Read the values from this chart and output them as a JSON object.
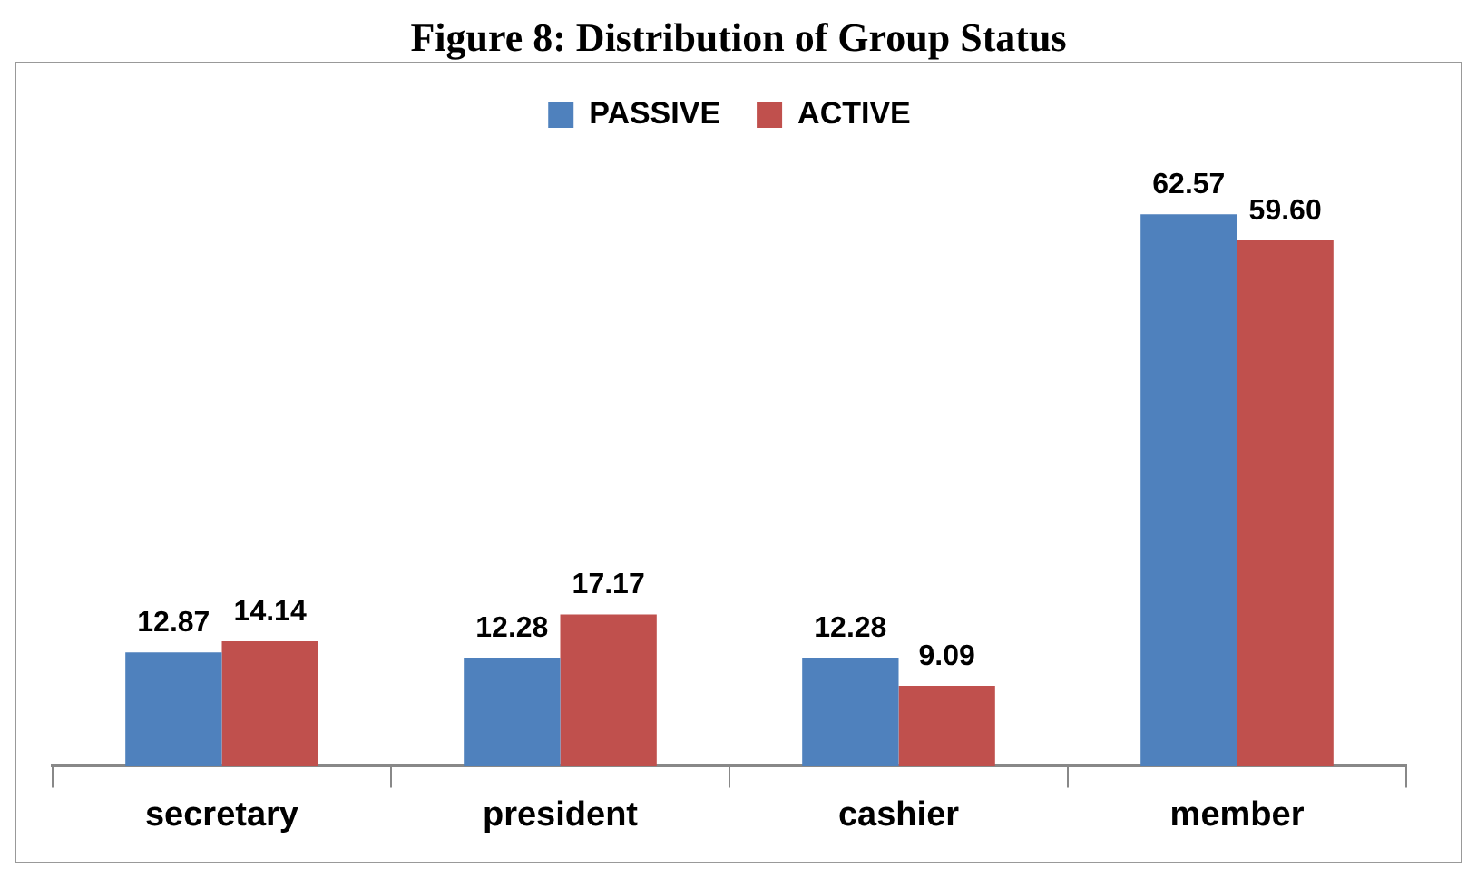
{
  "chart_data": {
    "type": "bar",
    "title": "Figure 8: Distribution of Group Status",
    "categories": [
      "secretary",
      "president",
      "cashier",
      "member"
    ],
    "series": [
      {
        "name": "PASSIVE",
        "color": "#4f81bd",
        "values": [
          12.87,
          12.28,
          12.28,
          62.57
        ],
        "value_labels": [
          "12.87",
          "12.28",
          "12.28",
          "62.57"
        ]
      },
      {
        "name": "ACTIVE",
        "color": "#c0504d",
        "values": [
          14.14,
          17.17,
          9.09,
          59.6
        ],
        "value_labels": [
          "14.14",
          "17.17",
          "9.09",
          "59.60"
        ]
      }
    ],
    "legend": "top",
    "grid": false
  }
}
